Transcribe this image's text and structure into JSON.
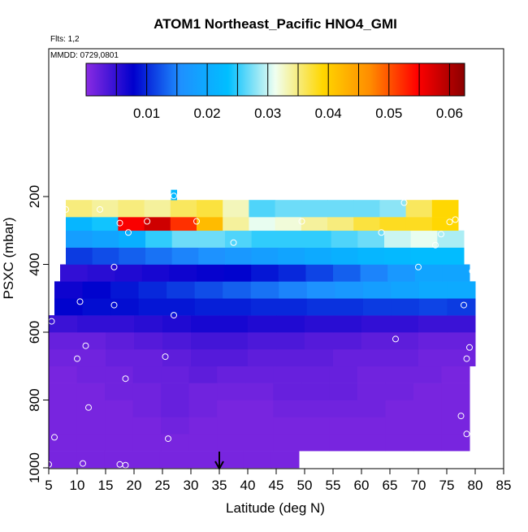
{
  "chart_data": {
    "type": "heatmap",
    "title": "ATOM1 Northeast_Pacific HNO4_GMI",
    "subtitle_flights": "Flts: 1,2",
    "subtitle_dates": "MMDD: 0729,0801",
    "xlabel": "Latitude (deg N)",
    "ylabel": "PSXC (mbar)",
    "xlim": [
      5,
      85
    ],
    "ylim": [
      1000,
      0
    ],
    "x_ticks": [
      5,
      10,
      15,
      20,
      25,
      30,
      35,
      40,
      45,
      50,
      55,
      60,
      65,
      70,
      75,
      80,
      85
    ],
    "y_ticks": [
      200,
      400,
      600,
      800,
      1000
    ],
    "colorbar": {
      "range": [
        0,
        0.0625
      ],
      "ticks": [
        "0.01",
        "0.02",
        "0.03",
        "0.04",
        "0.05",
        "0.06"
      ],
      "colors": [
        "#8a2be2",
        "#0000cd",
        "#1e90ff",
        "#00bfff",
        "#f0fff0",
        "#ffd700",
        "#ff8c00",
        "#ff0000",
        "#8b0000"
      ]
    },
    "arrow_latitude": 35,
    "layers": [
      {
        "p0": 1000,
        "p1": 950,
        "x0": 5,
        "x1": 49,
        "values": [
          0.001,
          0.001,
          0.001,
          0.001,
          0.001,
          0.001,
          0.001,
          0.001,
          0.001
        ]
      },
      {
        "p0": 950,
        "p1": 900,
        "x0": 5,
        "x1": 79,
        "values": [
          0.001,
          0.001,
          0.001,
          0.001,
          0.001,
          0.001,
          0.001,
          0.001,
          0.001,
          0.001,
          0.001,
          0.001,
          0.001,
          0.001,
          0.001
        ]
      },
      {
        "p0": 900,
        "p1": 850,
        "x0": 5,
        "x1": 79,
        "values": [
          0.001,
          0.001,
          0.001,
          0.001,
          0.0015,
          0.001,
          0.001,
          0.001,
          0.001,
          0.001,
          0.001,
          0.001,
          0.001,
          0.001,
          0.001
        ]
      },
      {
        "p0": 850,
        "p1": 800,
        "x0": 5,
        "x1": 79,
        "values": [
          0.001,
          0.001,
          0.001,
          0.0015,
          0.002,
          0.0015,
          0.001,
          0.001,
          0.0015,
          0.0015,
          0.0015,
          0.0015,
          0.001,
          0.001,
          0.001
        ]
      },
      {
        "p0": 800,
        "p1": 750,
        "x0": 5,
        "x1": 79,
        "values": [
          0.001,
          0.001,
          0.0015,
          0.0015,
          0.002,
          0.0015,
          0.0015,
          0.0015,
          0.002,
          0.002,
          0.002,
          0.0015,
          0.0015,
          0.001,
          0.001
        ]
      },
      {
        "p0": 750,
        "p1": 700,
        "x0": 5,
        "x1": 79,
        "values": [
          0.001,
          0.0015,
          0.0015,
          0.002,
          0.002,
          0.0025,
          0.002,
          0.002,
          0.002,
          0.002,
          0.002,
          0.0015,
          0.0015,
          0.0015,
          0.001
        ]
      },
      {
        "p0": 700,
        "p1": 650,
        "x0": 5,
        "x1": 80,
        "values": [
          0.0015,
          0.0015,
          0.002,
          0.002,
          0.0025,
          0.003,
          0.003,
          0.0025,
          0.0025,
          0.0025,
          0.002,
          0.002,
          0.002,
          0.0015,
          0.0015
        ]
      },
      {
        "p0": 650,
        "p1": 600,
        "x0": 5,
        "x1": 80,
        "values": [
          0.002,
          0.002,
          0.0025,
          0.003,
          0.0035,
          0.004,
          0.004,
          0.0035,
          0.0035,
          0.003,
          0.003,
          0.0025,
          0.0025,
          0.002,
          0.002
        ]
      },
      {
        "p0": 600,
        "p1": 550,
        "x0": 5,
        "x1": 80,
        "values": [
          0.0045,
          0.005,
          0.005,
          0.0055,
          0.006,
          0.0065,
          0.0065,
          0.006,
          0.006,
          0.0055,
          0.0055,
          0.005,
          0.005,
          0.0045,
          0.0045
        ]
      },
      {
        "p0": 550,
        "p1": 500,
        "x0": 6,
        "x1": 80,
        "values": [
          0.008,
          0.0085,
          0.0085,
          0.009,
          0.009,
          0.0095,
          0.0095,
          0.01,
          0.01,
          0.0105,
          0.0105,
          0.011,
          0.011,
          0.0115,
          0.011
        ]
      },
      {
        "p0": 500,
        "p1": 450,
        "x0": 6,
        "x1": 80,
        "values": [
          0.007,
          0.008,
          0.009,
          0.01,
          0.011,
          0.012,
          0.013,
          0.014,
          0.015,
          0.016,
          0.017,
          0.018,
          0.019,
          0.02,
          0.02
        ]
      },
      {
        "p0": 450,
        "p1": 400,
        "x0": 7,
        "x1": 79,
        "values": [
          0.005,
          0.0055,
          0.006,
          0.0065,
          0.007,
          0.0075,
          0.008,
          0.009,
          0.01,
          0.0115,
          0.013,
          0.015,
          0.017,
          0.019,
          0.019
        ]
      },
      {
        "p0": 400,
        "p1": 350,
        "x0": 8,
        "x1": 78,
        "values": [
          0.011,
          0.012,
          0.013,
          0.014,
          0.015,
          0.016,
          0.017,
          0.018,
          0.019,
          0.02,
          0.021,
          0.022,
          0.0225,
          0.023,
          0.023
        ]
      },
      {
        "p0": 350,
        "p1": 300,
        "x0": 8,
        "x1": 78,
        "values": [
          0.018,
          0.019,
          0.021,
          0.025,
          0.027,
          0.027,
          0.026,
          0.025,
          0.025,
          0.025,
          0.026,
          0.027,
          0.03,
          0.031,
          0.029
        ]
      },
      {
        "p0": 300,
        "p1": 260,
        "x0": 8,
        "x1": 77,
        "values": [
          0.022,
          0.024,
          0.055,
          0.058,
          0.052,
          0.042,
          0.034,
          0.031,
          0.032,
          0.034,
          0.035,
          0.037,
          0.038,
          0.038,
          0.039
        ]
      },
      {
        "p0": 260,
        "p1": 210,
        "x0": 8,
        "x1": 77,
        "values": [
          0.035,
          0.034,
          0.035,
          0.034,
          0.036,
          0.037,
          0.033,
          0.026,
          0.027,
          0.027,
          0.027,
          0.027,
          0.028,
          0.036,
          0.039
        ]
      },
      {
        "p0": 210,
        "p1": 180,
        "x0": 26.5,
        "x1": 27.5,
        "values": [
          0.0225
        ]
      }
    ],
    "points": [
      [
        27,
        198
      ],
      [
        67.5,
        218
      ],
      [
        8,
        238
      ],
      [
        14,
        238
      ],
      [
        79.5,
        261
      ],
      [
        76.5,
        268
      ],
      [
        22.3,
        273
      ],
      [
        31,
        273
      ],
      [
        49.5,
        273
      ],
      [
        17.5,
        278
      ],
      [
        75.5,
        275
      ],
      [
        19,
        306
      ],
      [
        63.5,
        306
      ],
      [
        74,
        311
      ],
      [
        37.5,
        336
      ],
      [
        73,
        343
      ],
      [
        16.5,
        408
      ],
      [
        70,
        408
      ],
      [
        79.5,
        420
      ],
      [
        10.5,
        510
      ],
      [
        16.5,
        520
      ],
      [
        78,
        520
      ],
      [
        27,
        550
      ],
      [
        5.5,
        568
      ],
      [
        66,
        620
      ],
      [
        11.5,
        640
      ],
      [
        79,
        645
      ],
      [
        10,
        678
      ],
      [
        78.5,
        678
      ],
      [
        25.5,
        672
      ],
      [
        18.5,
        737
      ],
      [
        12,
        822
      ],
      [
        77.5,
        847
      ],
      [
        6,
        910
      ],
      [
        78.5,
        900
      ],
      [
        26,
        914
      ],
      [
        5,
        990
      ],
      [
        11,
        987
      ],
      [
        17.5,
        990
      ],
      [
        18.5,
        992
      ]
    ]
  }
}
